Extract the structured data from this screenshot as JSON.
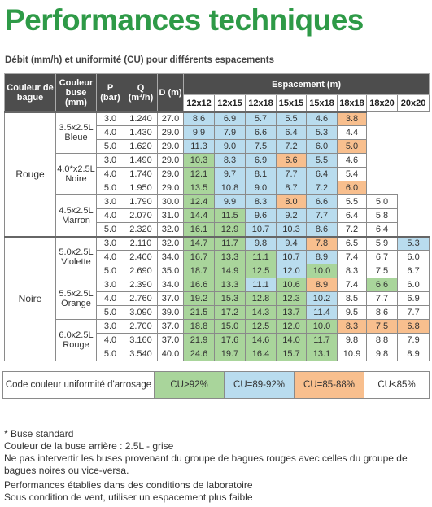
{
  "title": "Performances techniques",
  "subtitle": "Débit (mm/h) et uniformité (CU) pour différents espacements",
  "table": {
    "headers": [
      "Couleur de bague",
      "Couleur buse (mm)",
      "P (bar)",
      "Q (m³/h)",
      "D (m)"
    ],
    "spacing_header": "Espacement (m)",
    "spacings": [
      "12x12",
      "12x15",
      "12x18",
      "15x15",
      "15x18",
      "18x18",
      "18x20",
      "20x20"
    ],
    "groups": [
      {
        "bague": "Rouge",
        "nozzles": [
          {
            "label": "3.5x2.5L Bleue",
            "rows": [
              {
                "p": "3.0",
                "q": "1.240",
                "d": "27.0",
                "values": [
                  "8.6",
                  "6.9",
                  "5.7",
                  "5.5",
                  "4.6",
                  "3.8"
                ],
                "colors": [
                  "#b9dcee",
                  "#b9dcee",
                  "#b9dcee",
                  "#b9dcee",
                  "#b9dcee",
                  "#f8bf8e"
                ]
              },
              {
                "p": "4.0",
                "q": "1.430",
                "d": "29.0",
                "values": [
                  "9.9",
                  "7.9",
                  "6.6",
                  "6.4",
                  "5.3",
                  "4.4"
                ],
                "colors": [
                  "#b9dcee",
                  "#b9dcee",
                  "#b9dcee",
                  "#b9dcee",
                  "#b9dcee",
                  "#ffffff"
                ]
              },
              {
                "p": "5.0",
                "q": "1.620",
                "d": "29.0",
                "values": [
                  "11.3",
                  "9.0",
                  "7.5",
                  "7.2",
                  "6.0",
                  "5.0"
                ],
                "colors": [
                  "#b9dcee",
                  "#b9dcee",
                  "#b9dcee",
                  "#b9dcee",
                  "#b9dcee",
                  "#f8bf8e"
                ]
              }
            ]
          },
          {
            "label": "4.0*x2.5L Noire",
            "rows": [
              {
                "p": "3.0",
                "q": "1.490",
                "d": "29.0",
                "values": [
                  "10.3",
                  "8.3",
                  "6.9",
                  "6.6",
                  "5.5",
                  "4.6"
                ],
                "colors": [
                  "#a9d59b",
                  "#b9dcee",
                  "#b9dcee",
                  "#f8bf8e",
                  "#b9dcee",
                  "#ffffff"
                ]
              },
              {
                "p": "4.0",
                "q": "1.740",
                "d": "29.0",
                "values": [
                  "12.1",
                  "9.7",
                  "8.1",
                  "7.7",
                  "6.4",
                  "5.4"
                ],
                "colors": [
                  "#a9d59b",
                  "#b9dcee",
                  "#b9dcee",
                  "#b9dcee",
                  "#b9dcee",
                  "#ffffff"
                ]
              },
              {
                "p": "5.0",
                "q": "1.950",
                "d": "29.0",
                "values": [
                  "13.5",
                  "10.8",
                  "9.0",
                  "8.7",
                  "7.2",
                  "6.0"
                ],
                "colors": [
                  "#a9d59b",
                  "#b9dcee",
                  "#b9dcee",
                  "#b9dcee",
                  "#b9dcee",
                  "#f8bf8e"
                ]
              }
            ]
          },
          {
            "label": "4.5x2.5L Marron",
            "rows": [
              {
                "p": "3.0",
                "q": "1.790",
                "d": "30.0",
                "values": [
                  "12.4",
                  "9.9",
                  "8.3",
                  "8.0",
                  "6.6",
                  "5.5",
                  "5.0"
                ],
                "colors": [
                  "#a9d59b",
                  "#b9dcee",
                  "#b9dcee",
                  "#f8bf8e",
                  "#b9dcee",
                  "#ffffff",
                  "#ffffff"
                ]
              },
              {
                "p": "4.0",
                "q": "2.070",
                "d": "31.0",
                "values": [
                  "14.4",
                  "11.5",
                  "9.6",
                  "9.2",
                  "7.7",
                  "6.4",
                  "5.8"
                ],
                "colors": [
                  "#a9d59b",
                  "#a9d59b",
                  "#b9dcee",
                  "#b9dcee",
                  "#b9dcee",
                  "#ffffff",
                  "#ffffff"
                ]
              },
              {
                "p": "5.0",
                "q": "2.320",
                "d": "32.0",
                "values": [
                  "16.1",
                  "12.9",
                  "10.7",
                  "10.3",
                  "8.6",
                  "7.2",
                  "6.4"
                ],
                "colors": [
                  "#a9d59b",
                  "#a9d59b",
                  "#b9dcee",
                  "#b9dcee",
                  "#b9dcee",
                  "#ffffff",
                  "#ffffff"
                ]
              }
            ]
          }
        ]
      },
      {
        "bague": "Noire",
        "nozzles": [
          {
            "label": "5.0x2.5L Violette",
            "rows": [
              {
                "p": "3.0",
                "q": "2.110",
                "d": "32.0",
                "values": [
                  "14.7",
                  "11.7",
                  "9.8",
                  "9.4",
                  "7.8",
                  "6.5",
                  "5.9",
                  "5.3"
                ],
                "colors": [
                  "#a9d59b",
                  "#a9d59b",
                  "#b9dcee",
                  "#b9dcee",
                  "#f8bf8e",
                  "#ffffff",
                  "#ffffff",
                  "#b9dcee"
                ]
              },
              {
                "p": "4.0",
                "q": "2.400",
                "d": "34.0",
                "values": [
                  "16.7",
                  "13.3",
                  "11.1",
                  "10.7",
                  "8.9",
                  "7.4",
                  "6.7",
                  "6.0"
                ],
                "colors": [
                  "#a9d59b",
                  "#a9d59b",
                  "#a9d59b",
                  "#b9dcee",
                  "#b9dcee",
                  "#ffffff",
                  "#ffffff",
                  "#ffffff"
                ]
              },
              {
                "p": "5.0",
                "q": "2.690",
                "d": "35.0",
                "values": [
                  "18.7",
                  "14.9",
                  "12.5",
                  "12.0",
                  "10.0",
                  "8.3",
                  "7.5",
                  "6.7"
                ],
                "colors": [
                  "#a9d59b",
                  "#a9d59b",
                  "#a9d59b",
                  "#b9dcee",
                  "#a9d59b",
                  "#ffffff",
                  "#ffffff",
                  "#ffffff"
                ]
              }
            ]
          },
          {
            "label": "5.5x2.5L Orange",
            "rows": [
              {
                "p": "3.0",
                "q": "2.390",
                "d": "34.0",
                "values": [
                  "16.6",
                  "13.3",
                  "11.1",
                  "10.6",
                  "8.9",
                  "7.4",
                  "6.6",
                  "6.0"
                ],
                "colors": [
                  "#a9d59b",
                  "#a9d59b",
                  "#b9dcee",
                  "#a9d59b",
                  "#f8bf8e",
                  "#ffffff",
                  "#a9d59b",
                  "#ffffff"
                ]
              },
              {
                "p": "4.0",
                "q": "2.760",
                "d": "37.0",
                "values": [
                  "19.2",
                  "15.3",
                  "12.8",
                  "12.3",
                  "10.2",
                  "8.5",
                  "7.7",
                  "6.9"
                ],
                "colors": [
                  "#a9d59b",
                  "#a9d59b",
                  "#a9d59b",
                  "#a9d59b",
                  "#b9dcee",
                  "#ffffff",
                  "#ffffff",
                  "#ffffff"
                ]
              },
              {
                "p": "5.0",
                "q": "3.090",
                "d": "39.0",
                "values": [
                  "21.5",
                  "17.2",
                  "14.3",
                  "13.7",
                  "11.4",
                  "9.5",
                  "8.6",
                  "7.7"
                ],
                "colors": [
                  "#a9d59b",
                  "#a9d59b",
                  "#a9d59b",
                  "#a9d59b",
                  "#b9dcee",
                  "#ffffff",
                  "#ffffff",
                  "#ffffff"
                ]
              }
            ]
          },
          {
            "label": "6.0x2.5L Rouge",
            "rows": [
              {
                "p": "3.0",
                "q": "2.700",
                "d": "37.0",
                "values": [
                  "18.8",
                  "15.0",
                  "12.5",
                  "12.0",
                  "10.0",
                  "8.3",
                  "7.5",
                  "6.8"
                ],
                "colors": [
                  "#a9d59b",
                  "#a9d59b",
                  "#a9d59b",
                  "#a9d59b",
                  "#a9d59b",
                  "#f8bf8e",
                  "#f8bf8e",
                  "#f8bf8e"
                ]
              },
              {
                "p": "4.0",
                "q": "3.160",
                "d": "37.0",
                "values": [
                  "21.9",
                  "17.6",
                  "14.6",
                  "14.0",
                  "11.7",
                  "9.8",
                  "8.8",
                  "7.9"
                ],
                "colors": [
                  "#a9d59b",
                  "#a9d59b",
                  "#a9d59b",
                  "#a9d59b",
                  "#a9d59b",
                  "#ffffff",
                  "#ffffff",
                  "#ffffff"
                ]
              },
              {
                "p": "5.0",
                "q": "3.540",
                "d": "40.0",
                "values": [
                  "24.6",
                  "19.7",
                  "16.4",
                  "15.7",
                  "13.1",
                  "10.9",
                  "9.8",
                  "8.9"
                ],
                "colors": [
                  "#a9d59b",
                  "#a9d59b",
                  "#a9d59b",
                  "#a9d59b",
                  "#a9d59b",
                  "#ffffff",
                  "#ffffff",
                  "#ffffff"
                ]
              }
            ]
          }
        ]
      }
    ]
  },
  "legend": {
    "label": "Code couleur uniformité d'arrosage",
    "items": [
      {
        "label": "CU>92%",
        "color": "#a9d59b"
      },
      {
        "label": "CU=89-92%",
        "color": "#b9dcee"
      },
      {
        "label": "CU=85-88%",
        "color": "#f8bf8e"
      },
      {
        "label": "CU<85%",
        "color": "#ffffff"
      }
    ]
  },
  "notes": [
    "* Buse standard",
    "Couleur de la buse arrière : 2.5L - grise",
    "Ne pas intervertir les buses provenant du groupe de bagues rouges avec celles du groupe de bagues noires ou vice-versa.",
    "Performances établies dans des conditions de laboratoire",
    "Sous condition de vent, utiliser un espacement plus faible"
  ]
}
